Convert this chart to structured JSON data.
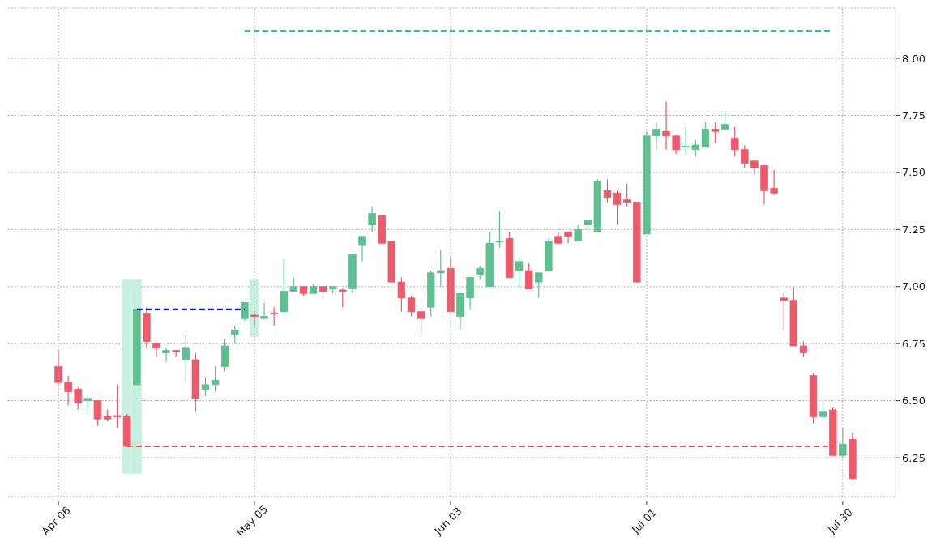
{
  "chart_data": {
    "type": "candlestick",
    "categories": [
      "Apr 06",
      null,
      null,
      null,
      null,
      null,
      null,
      null,
      null,
      null,
      null,
      null,
      null,
      null,
      null,
      null,
      null,
      null,
      null,
      null,
      "May 05",
      null,
      null,
      null,
      null,
      null,
      null,
      null,
      null,
      null,
      null,
      null,
      null,
      null,
      null,
      null,
      null,
      null,
      null,
      null,
      "Jun 03",
      null,
      null,
      null,
      null,
      null,
      null,
      null,
      null,
      null,
      null,
      null,
      null,
      null,
      null,
      null,
      null,
      null,
      null,
      null,
      "Jul 01",
      null,
      null,
      null,
      null,
      null,
      null,
      null,
      null,
      null,
      null,
      null,
      null,
      null,
      null,
      null,
      null,
      null,
      null,
      null,
      "Jul 30",
      null
    ],
    "ohlc": [
      [
        6.65,
        6.72,
        6.57,
        6.58
      ],
      [
        6.58,
        6.61,
        6.48,
        6.54
      ],
      [
        6.55,
        6.56,
        6.46,
        6.49
      ],
      [
        6.5,
        6.52,
        6.45,
        6.51
      ],
      [
        6.5,
        6.5,
        6.39,
        6.42
      ],
      [
        6.43,
        6.46,
        6.41,
        6.42
      ],
      [
        6.435,
        6.57,
        6.38,
        6.43
      ],
      [
        6.43,
        6.44,
        6.3,
        6.3
      ],
      [
        6.57,
        6.9,
        6.57,
        6.9
      ],
      [
        6.88,
        6.91,
        6.73,
        6.76
      ],
      [
        6.75,
        6.76,
        6.69,
        6.73
      ],
      [
        6.71,
        6.73,
        6.67,
        6.72
      ],
      [
        6.72,
        6.72,
        6.69,
        6.715
      ],
      [
        6.68,
        6.79,
        6.58,
        6.73
      ],
      [
        6.68,
        6.71,
        6.45,
        6.51
      ],
      [
        6.55,
        6.6,
        6.52,
        6.57
      ],
      [
        6.57,
        6.65,
        6.54,
        6.59
      ],
      [
        6.65,
        6.77,
        6.63,
        6.74
      ],
      [
        6.79,
        6.83,
        6.75,
        6.81
      ],
      [
        6.86,
        6.93,
        6.85,
        6.93
      ],
      [
        6.875,
        6.89,
        6.83,
        6.87
      ],
      [
        6.86,
        6.93,
        6.86,
        6.87
      ],
      [
        6.885,
        6.91,
        6.83,
        6.88
      ],
      [
        6.89,
        7.12,
        6.89,
        6.98
      ],
      [
        6.98,
        7.04,
        6.98,
        7.0
      ],
      [
        7.0,
        7.0,
        6.96,
        6.97
      ],
      [
        6.97,
        7.01,
        6.97,
        7.0
      ],
      [
        7.0,
        7.0,
        6.97,
        6.98
      ],
      [
        6.99,
        7.0,
        6.97,
        7.0
      ],
      [
        6.985,
        6.99,
        6.91,
        6.98
      ],
      [
        6.99,
        7.14,
        6.97,
        7.14
      ],
      [
        7.18,
        7.22,
        7.11,
        7.22
      ],
      [
        7.27,
        7.35,
        7.24,
        7.32
      ],
      [
        7.31,
        7.31,
        7.19,
        7.19
      ],
      [
        7.2,
        7.2,
        7.02,
        7.02
      ],
      [
        7.02,
        7.04,
        6.89,
        6.95
      ],
      [
        6.95,
        6.96,
        6.87,
        6.89
      ],
      [
        6.89,
        6.91,
        6.79,
        6.86
      ],
      [
        6.91,
        7.07,
        6.87,
        7.06
      ],
      [
        7.06,
        7.16,
        7.0,
        7.07
      ],
      [
        7.08,
        7.13,
        6.89,
        6.89
      ],
      [
        6.87,
        6.97,
        6.81,
        6.97
      ],
      [
        6.95,
        7.04,
        6.9,
        7.04
      ],
      [
        7.05,
        7.09,
        7.03,
        7.08
      ],
      [
        7.0,
        7.24,
        7.0,
        7.19
      ],
      [
        7.195,
        7.33,
        7.17,
        7.2
      ],
      [
        7.21,
        7.24,
        7.04,
        7.04
      ],
      [
        7.07,
        7.13,
        7.0,
        7.11
      ],
      [
        7.07,
        7.1,
        6.99,
        6.99
      ],
      [
        7.02,
        7.06,
        6.95,
        7.06
      ],
      [
        7.07,
        7.21,
        7.07,
        7.2
      ],
      [
        7.22,
        7.24,
        7.19,
        7.19
      ],
      [
        7.24,
        7.24,
        7.19,
        7.22
      ],
      [
        7.2,
        7.27,
        7.2,
        7.25
      ],
      [
        7.27,
        7.29,
        7.26,
        7.29
      ],
      [
        7.24,
        7.47,
        7.24,
        7.46
      ],
      [
        7.42,
        7.47,
        7.37,
        7.39
      ],
      [
        7.41,
        7.42,
        7.27,
        7.36
      ],
      [
        7.38,
        7.45,
        7.35,
        7.37
      ],
      [
        7.37,
        7.37,
        7.02,
        7.02
      ],
      [
        7.23,
        7.68,
        7.23,
        7.66
      ],
      [
        7.66,
        7.72,
        7.6,
        7.69
      ],
      [
        7.68,
        7.81,
        7.6,
        7.66
      ],
      [
        7.66,
        7.66,
        7.58,
        7.6
      ],
      [
        7.61,
        7.7,
        7.58,
        7.615
      ],
      [
        7.6,
        7.64,
        7.57,
        7.62
      ],
      [
        7.61,
        7.72,
        7.61,
        7.69
      ],
      [
        7.69,
        7.72,
        7.63,
        7.68
      ],
      [
        7.69,
        7.77,
        7.69,
        7.71
      ],
      [
        7.65,
        7.7,
        7.57,
        7.6
      ],
      [
        7.6,
        7.62,
        7.52,
        7.54
      ],
      [
        7.55,
        7.55,
        7.49,
        7.52
      ],
      [
        7.53,
        7.53,
        7.36,
        7.42
      ],
      [
        7.43,
        7.51,
        7.4,
        7.41
      ],
      [
        6.95,
        6.97,
        6.81,
        6.94
      ],
      [
        6.94,
        7.0,
        6.74,
        6.74
      ],
      [
        6.74,
        6.76,
        6.69,
        6.71
      ],
      [
        6.61,
        6.62,
        6.4,
        6.43
      ],
      [
        6.43,
        6.51,
        6.43,
        6.45
      ],
      [
        6.46,
        6.47,
        6.26,
        6.26
      ],
      [
        6.26,
        6.38,
        6.25,
        6.31
      ],
      [
        6.33,
        6.36,
        6.15,
        6.16
      ]
    ],
    "colors": [
      "#ee5a6a",
      "#ee5a6a",
      "#ee5a6a",
      "#5ebf8f",
      "#ee5a6a",
      "#ee5a6a",
      "#ee5a6a",
      "#ee5a6a",
      "#5ebf8f",
      "#ee5a6a",
      "#ee5a6a",
      "#5ebf8f",
      "#ee5a6a",
      "#5ebf8f",
      "#ee5a6a",
      "#5ebf8f",
      "#5ebf8f",
      "#5ebf8f",
      "#5ebf8f",
      "#5ebf8f",
      "#ee5a6a",
      "#5ebf8f",
      "#ee5a6a",
      "#5ebf8f",
      "#5ebf8f",
      "#ee5a6a",
      "#5ebf8f",
      "#ee5a6a",
      "#5ebf8f",
      "#ee5a6a",
      "#5ebf8f",
      "#5ebf8f",
      "#5ebf8f",
      "#ee5a6a",
      "#ee5a6a",
      "#ee5a6a",
      "#ee5a6a",
      "#ee5a6a",
      "#5ebf8f",
      "#5ebf8f",
      "#ee5a6a",
      "#5ebf8f",
      "#5ebf8f",
      "#5ebf8f",
      "#5ebf8f",
      "#5ebf8f",
      "#ee5a6a",
      "#5ebf8f",
      "#ee5a6a",
      "#5ebf8f",
      "#5ebf8f",
      "#ee5a6a",
      "#ee5a6a",
      "#5ebf8f",
      "#5ebf8f",
      "#5ebf8f",
      "#ee5a6a",
      "#ee5a6a",
      "#ee5a6a",
      "#ee5a6a",
      "#5ebf8f",
      "#5ebf8f",
      "#ee5a6a",
      "#ee5a6a",
      "#5ebf8f",
      "#5ebf8f",
      "#5ebf8f",
      "#ee5a6a",
      "#5ebf8f",
      "#ee5a6a",
      "#ee5a6a",
      "#ee5a6a",
      "#ee5a6a",
      "#ee5a6a",
      "#ee5a6a",
      "#ee5a6a",
      "#ee5a6a",
      "#ee5a6a",
      "#5ebf8f",
      "#ee5a6a",
      "#5ebf8f",
      "#ee5a6a"
    ],
    "series": [
      {
        "type": "bar",
        "color": "#c6f0df",
        "values": [
          null,
          null,
          null,
          null,
          null,
          null,
          null,
          0.85,
          0.85,
          null,
          null,
          null,
          null,
          null,
          null,
          null,
          null,
          null,
          null,
          null,
          0.25,
          null,
          null,
          null,
          null,
          null,
          null,
          null,
          null,
          null,
          null,
          null,
          null,
          null,
          null,
          null,
          null,
          null,
          null,
          null,
          null,
          null,
          null,
          null,
          null,
          null,
          null,
          null,
          null,
          null,
          null,
          null,
          null,
          null,
          null,
          null,
          null,
          null,
          null,
          null,
          null,
          null,
          null,
          null,
          null,
          null,
          null,
          null,
          null,
          null,
          null,
          null,
          null,
          null,
          null,
          null,
          null,
          null,
          null,
          null,
          null,
          null
        ],
        "base": [
          null,
          null,
          null,
          null,
          null,
          null,
          null,
          6.18,
          6.18,
          null,
          null,
          null,
          null,
          null,
          null,
          null,
          null,
          null,
          null,
          null,
          6.78,
          null,
          null,
          null,
          null,
          null,
          null,
          null,
          null,
          null,
          null,
          null,
          null,
          null,
          null,
          null,
          null,
          null,
          null,
          null,
          null,
          null,
          null,
          null,
          null,
          null,
          null,
          null,
          null,
          null,
          null,
          null,
          null,
          null,
          null,
          null,
          null,
          null,
          null,
          null,
          null,
          null,
          null,
          null,
          null,
          null,
          null,
          null,
          null,
          null,
          null,
          null,
          null,
          null,
          null,
          null,
          null,
          null,
          null,
          null,
          null,
          null
        ]
      },
      {
        "type": "line",
        "color": "#e8445a",
        "line_style": "dashed",
        "values": [
          null,
          null,
          null,
          null,
          null,
          null,
          null,
          6.3,
          6.3,
          6.3,
          6.3,
          6.3,
          6.3,
          6.3,
          6.3,
          6.3,
          6.3,
          6.3,
          6.3,
          6.3,
          6.3,
          6.3,
          6.3,
          6.3,
          6.3,
          6.3,
          6.3,
          6.3,
          6.3,
          6.3,
          6.3,
          6.3,
          6.3,
          6.3,
          6.3,
          6.3,
          6.3,
          6.3,
          6.3,
          6.3,
          6.3,
          6.3,
          6.3,
          6.3,
          6.3,
          6.3,
          6.3,
          6.3,
          6.3,
          6.3,
          6.3,
          6.3,
          6.3,
          6.3,
          6.3,
          6.3,
          6.3,
          6.3,
          6.3,
          6.3,
          6.3,
          6.3,
          6.3,
          6.3,
          6.3,
          6.3,
          6.3,
          6.3,
          6.3,
          6.3,
          6.3,
          6.3,
          6.3,
          6.3,
          6.3,
          6.3,
          6.3,
          6.3,
          6.3,
          6.3,
          null,
          null
        ]
      },
      {
        "type": "line",
        "color": "#0a14d8",
        "line_style": "dashed",
        "values": [
          null,
          null,
          null,
          null,
          null,
          null,
          null,
          null,
          6.9,
          6.9,
          6.9,
          6.9,
          6.9,
          6.9,
          6.9,
          6.9,
          6.9,
          6.9,
          6.9,
          6.9,
          null,
          null,
          null,
          null,
          null,
          null,
          null,
          null,
          null,
          null,
          null,
          null,
          null,
          null,
          null,
          null,
          null,
          null,
          null,
          null,
          null,
          null,
          null,
          null,
          null,
          null,
          null,
          null,
          null,
          null,
          null,
          null,
          null,
          null,
          null,
          null,
          null,
          null,
          null,
          null,
          null,
          null,
          null,
          null,
          null,
          null,
          null,
          null,
          null,
          null,
          null,
          null,
          null,
          null,
          null,
          null,
          null,
          null,
          null,
          null,
          null,
          null
        ]
      },
      {
        "type": "line",
        "color": "#16d08c",
        "line_style": "dashed",
        "values": [
          null,
          null,
          null,
          null,
          null,
          null,
          null,
          null,
          null,
          null,
          null,
          null,
          null,
          null,
          null,
          null,
          null,
          null,
          null,
          8.12,
          8.12,
          8.12,
          8.12,
          8.12,
          8.12,
          8.12,
          8.12,
          8.12,
          8.12,
          8.12,
          8.12,
          8.12,
          8.12,
          8.12,
          8.12,
          8.12,
          8.12,
          8.12,
          8.12,
          8.12,
          8.12,
          8.12,
          8.12,
          8.12,
          8.12,
          8.12,
          8.12,
          8.12,
          8.12,
          8.12,
          8.12,
          8.12,
          8.12,
          8.12,
          8.12,
          8.12,
          8.12,
          8.12,
          8.12,
          8.12,
          8.12,
          8.12,
          8.12,
          8.12,
          8.12,
          8.12,
          8.12,
          8.12,
          8.12,
          8.12,
          8.12,
          8.12,
          8.12,
          8.12,
          8.12,
          8.12,
          8.12,
          8.12,
          8.12,
          8.12,
          null,
          null
        ]
      }
    ],
    "ylim": [
      6.08,
      8.22
    ],
    "yticks": [
      {
        "value": 6.25,
        "label": "6.25"
      },
      {
        "value": 6.5,
        "label": "6.50"
      },
      {
        "value": 6.75,
        "label": "6.75"
      },
      {
        "value": 7,
        "label": "7.00"
      },
      {
        "value": 7.25,
        "label": "7.25"
      },
      {
        "value": 7.5,
        "label": "7.50"
      },
      {
        "value": 7.75,
        "label": "7.75"
      },
      {
        "value": 8,
        "label": "8.00"
      }
    ],
    "grid": true
  }
}
